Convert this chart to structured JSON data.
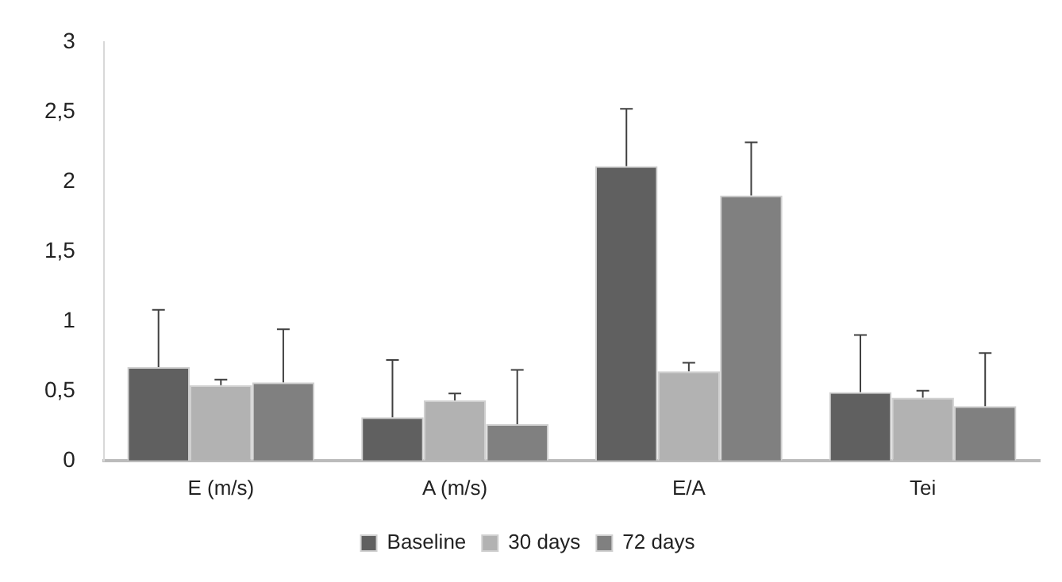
{
  "chart_data": {
    "type": "bar",
    "categories": [
      "E (m/s)",
      "A (m/s)",
      "E/A",
      "Tei"
    ],
    "series": [
      {
        "name": "Baseline",
        "color": "#606060",
        "values": [
          0.67,
          0.31,
          2.11,
          0.49
        ],
        "errors": [
          [
            0.67,
            1.08
          ],
          [
            0.31,
            0.72
          ],
          [
            2.11,
            2.52
          ],
          [
            0.49,
            0.9
          ]
        ]
      },
      {
        "name": "30 days",
        "color": "#b2b2b2",
        "values": [
          0.54,
          0.43,
          0.64,
          0.45
        ],
        "errors": [
          [
            0.54,
            0.58
          ],
          [
            0.43,
            0.48
          ],
          [
            0.64,
            0.7
          ],
          [
            0.45,
            0.5
          ]
        ]
      },
      {
        "name": "72 days",
        "color": "#808080",
        "values": [
          0.56,
          0.26,
          1.9,
          0.39
        ],
        "errors": [
          [
            0.56,
            0.94
          ],
          [
            0.26,
            0.65
          ],
          [
            1.9,
            2.28
          ],
          [
            0.39,
            0.77
          ]
        ]
      }
    ],
    "ylim": [
      0,
      3
    ],
    "yticks": [
      0,
      {
        "value": 0.5,
        "label": "0,5"
      },
      1,
      {
        "value": 1.5,
        "label": "1,5"
      },
      2,
      {
        "value": 2.5,
        "label": "2,5"
      },
      3
    ],
    "grid": false,
    "legend": "bottom"
  }
}
